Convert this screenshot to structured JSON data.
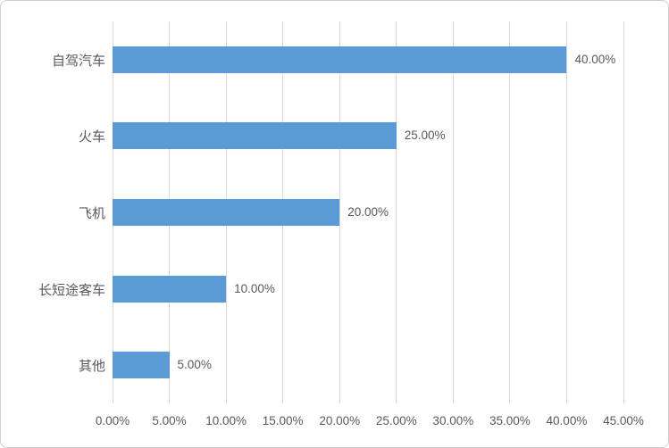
{
  "chart_data": {
    "type": "bar",
    "orientation": "horizontal",
    "title": "",
    "xlabel": "",
    "ylabel": "",
    "categories": [
      "自驾汽车",
      "火车",
      "飞机",
      "长短途客车",
      "其他"
    ],
    "values": [
      40,
      25,
      20,
      10,
      5
    ],
    "value_labels": [
      "40.00%",
      "25.00%",
      "20.00%",
      "10.00%",
      "5.00%"
    ],
    "x_tick_labels": [
      "0.00%",
      "5.00%",
      "10.00%",
      "15.00%",
      "20.00%",
      "25.00%",
      "30.00%",
      "35.00%",
      "40.00%",
      "45.00%"
    ],
    "x_tick_values": [
      0,
      5,
      10,
      15,
      20,
      25,
      30,
      35,
      40,
      45
    ],
    "xlim": [
      0,
      45
    ],
    "grid": "vertical-only",
    "legend": "none",
    "data_labels_position": "outside-end",
    "colors": {
      "bar": "#5B9BD5",
      "gridline": "#D9D9D9",
      "text": "#595959",
      "frame_border": "#D0CECE",
      "background": "#FFFFFF"
    }
  }
}
